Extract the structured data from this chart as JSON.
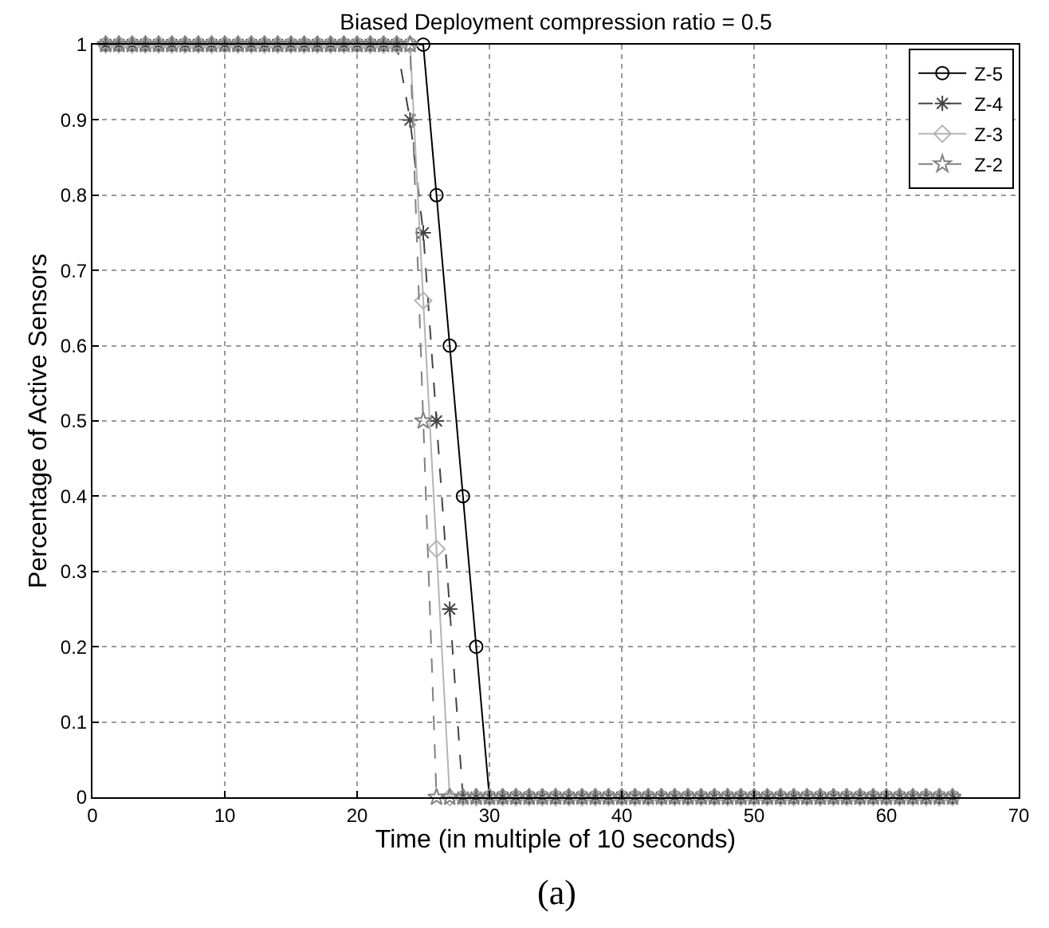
{
  "chart_data": {
    "type": "line",
    "title": "Biased Deployment compression ratio = 0.5",
    "xlabel": "Time (in multiple of 10 seconds)",
    "ylabel": "Percentage of Active Sensors",
    "annotations": [
      "(a)"
    ],
    "x": [
      1,
      2,
      3,
      4,
      5,
      6,
      7,
      8,
      9,
      10,
      11,
      12,
      13,
      14,
      15,
      16,
      17,
      18,
      19,
      20,
      21,
      22,
      23,
      24,
      25,
      26,
      27,
      28,
      29,
      30,
      31,
      32,
      33,
      34,
      35,
      36,
      37,
      38,
      39,
      40,
      41,
      42,
      43,
      44,
      45,
      46,
      47,
      48,
      49,
      50,
      51,
      52,
      53,
      54,
      55,
      56,
      57,
      58,
      59,
      60,
      61,
      62,
      63,
      64,
      65
    ],
    "series": [
      {
        "name": "Z-5",
        "color": "#000000",
        "marker": "circle",
        "line_style": "solid",
        "values": [
          1,
          1,
          1,
          1,
          1,
          1,
          1,
          1,
          1,
          1,
          1,
          1,
          1,
          1,
          1,
          1,
          1,
          1,
          1,
          1,
          1,
          1,
          1,
          1,
          1,
          0.8,
          0.6,
          0.4,
          0.2,
          0,
          0,
          0,
          0,
          0,
          0,
          0,
          0,
          0,
          0,
          0,
          0,
          0,
          0,
          0,
          0,
          0,
          0,
          0,
          0,
          0,
          0,
          0,
          0,
          0,
          0,
          0,
          0,
          0,
          0,
          0,
          0,
          0,
          0,
          0,
          0
        ]
      },
      {
        "name": "Z-4",
        "color": "#444444",
        "marker": "cross",
        "line_style": "dashed",
        "values": [
          1,
          1,
          1,
          1,
          1,
          1,
          1,
          1,
          1,
          1,
          1,
          1,
          1,
          1,
          1,
          1,
          1,
          1,
          1,
          1,
          1,
          1,
          1,
          0.9,
          0.75,
          0.5,
          0.25,
          0,
          0,
          0,
          0,
          0,
          0,
          0,
          0,
          0,
          0,
          0,
          0,
          0,
          0,
          0,
          0,
          0,
          0,
          0,
          0,
          0,
          0,
          0,
          0,
          0,
          0,
          0,
          0,
          0,
          0,
          0,
          0,
          0,
          0,
          0,
          0,
          0,
          0
        ]
      },
      {
        "name": "Z-3",
        "color": "#b4b4b4",
        "marker": "diamond",
        "line_style": "solid",
        "values": [
          1,
          1,
          1,
          1,
          1,
          1,
          1,
          1,
          1,
          1,
          1,
          1,
          1,
          1,
          1,
          1,
          1,
          1,
          1,
          1,
          1,
          1,
          1,
          1,
          0.66,
          0.33,
          0,
          0,
          0,
          0,
          0,
          0,
          0,
          0,
          0,
          0,
          0,
          0,
          0,
          0,
          0,
          0,
          0,
          0,
          0,
          0,
          0,
          0,
          0,
          0,
          0,
          0,
          0,
          0,
          0,
          0,
          0,
          0,
          0,
          0,
          0,
          0,
          0,
          0,
          0
        ]
      },
      {
        "name": "Z-2",
        "color": "#808080",
        "marker": "star",
        "line_style": "dashed",
        "values": [
          1,
          1,
          1,
          1,
          1,
          1,
          1,
          1,
          1,
          1,
          1,
          1,
          1,
          1,
          1,
          1,
          1,
          1,
          1,
          1,
          1,
          1,
          1,
          1,
          0.5,
          0,
          0,
          0,
          0,
          0,
          0,
          0,
          0,
          0,
          0,
          0,
          0,
          0,
          0,
          0,
          0,
          0,
          0,
          0,
          0,
          0,
          0,
          0,
          0,
          0,
          0,
          0,
          0,
          0,
          0,
          0,
          0,
          0,
          0,
          0,
          0,
          0,
          0,
          0,
          0
        ]
      }
    ],
    "xlim": [
      0,
      70
    ],
    "xticks": [
      0,
      10,
      20,
      30,
      40,
      50,
      60,
      70
    ],
    "ylim": [
      0,
      1
    ],
    "yticks": [
      0,
      0.1,
      0.2,
      0.3,
      0.4,
      0.5,
      0.6,
      0.7,
      0.8,
      0.9,
      1
    ],
    "grid": true,
    "legend": "top right"
  }
}
